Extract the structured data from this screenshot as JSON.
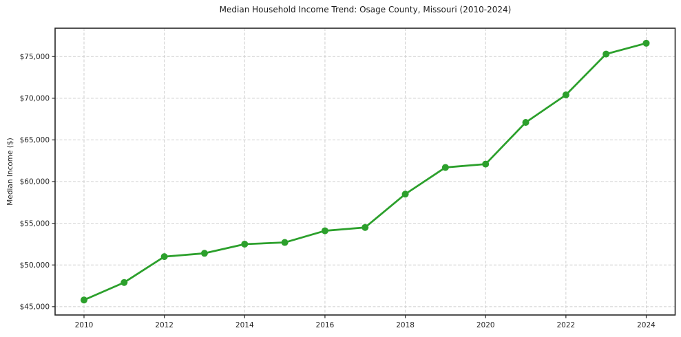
{
  "title": "Median Household Income Trend: Osage County, Missouri (2010-2024)",
  "chart_data": {
    "type": "line",
    "title": "Median Household Income Trend: Osage County, Missouri (2010-2024)",
    "xlabel": "",
    "ylabel": "Median Income ($)",
    "x": [
      2010,
      2011,
      2012,
      2013,
      2014,
      2015,
      2016,
      2017,
      2018,
      2019,
      2020,
      2021,
      2022,
      2023,
      2024
    ],
    "values": [
      45800,
      47900,
      51000,
      51400,
      52500,
      52700,
      54100,
      54500,
      58500,
      61700,
      62100,
      67100,
      70400,
      75300,
      76600
    ],
    "xticks": [
      2010,
      2012,
      2014,
      2016,
      2018,
      2020,
      2022,
      2024
    ],
    "yticks": [
      45000,
      50000,
      55000,
      60000,
      65000,
      70000,
      75000
    ],
    "xlim": [
      2009.28,
      2024.72
    ],
    "ylim": [
      44000,
      78400
    ],
    "grid": true,
    "legend": "none",
    "y_tick_prefix": "$",
    "line_color": "#2ca02c",
    "marker_color": "#2ca02c",
    "grid_color": "#cfcfcf",
    "axis_color": "#262626",
    "text_color": "#262626",
    "background_color": "#ffffff"
  }
}
